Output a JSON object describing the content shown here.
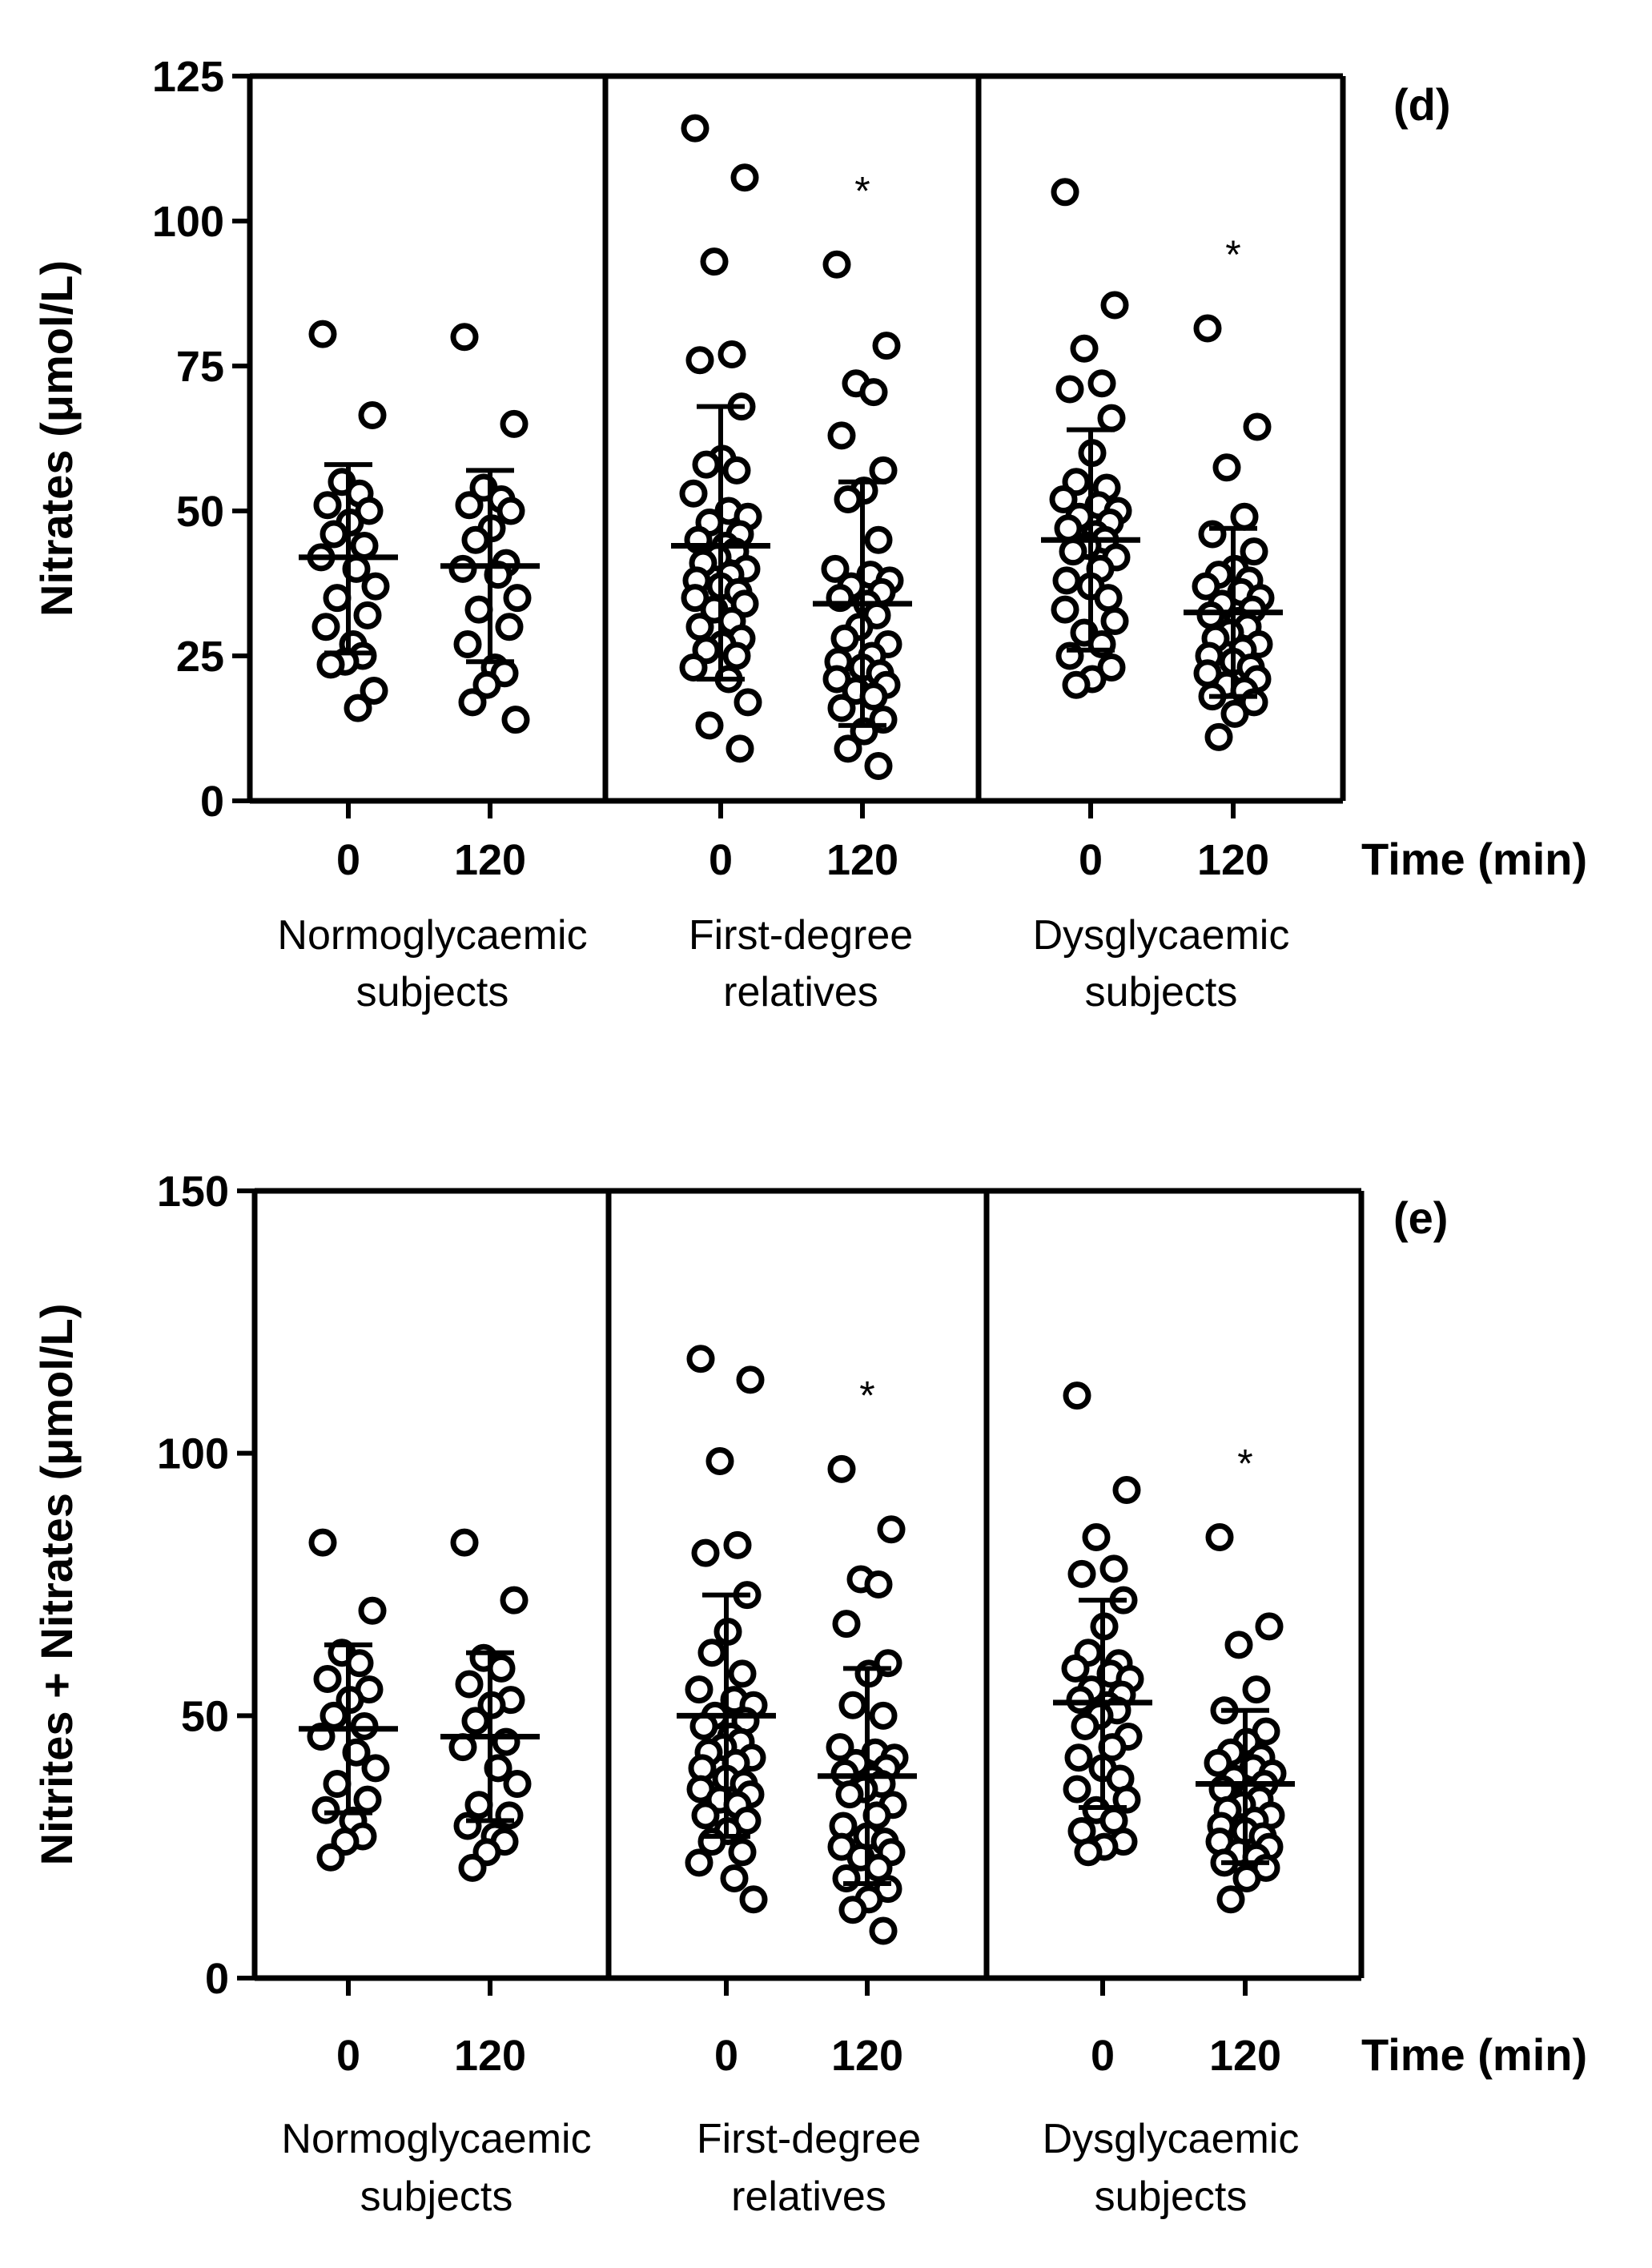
{
  "chart_data": [
    {
      "type": "scatter",
      "panel": "(d)",
      "ylabel": "Nitrates (μmol/L)",
      "xlabel": "Time (min)",
      "ylim": [
        0,
        125
      ],
      "yticks": [
        0,
        25,
        50,
        75,
        100,
        125
      ],
      "groups": [
        {
          "label_line1": "Normoglycaemic",
          "label_line2": "subjects",
          "columns": [
            {
              "time": "0",
              "mean": 42,
              "sd_low": 25.5,
              "sd_high": 58,
              "significant": false,
              "values": [
                80.5,
                66.5,
                55,
                53,
                51,
                50,
                48,
                46,
                44,
                42,
                40,
                37,
                35,
                32,
                30,
                27,
                25,
                24,
                23.5,
                19,
                16
              ]
            },
            {
              "time": "120",
              "mean": 40.5,
              "sd_low": 24,
              "sd_high": 57,
              "significant": false,
              "values": [
                80,
                65,
                54,
                52,
                51,
                50,
                47,
                45,
                41,
                40,
                39,
                35,
                33,
                30,
                27,
                23,
                22,
                20,
                17,
                14
              ]
            }
          ]
        },
        {
          "label_line1": "First-degree",
          "label_line2": "relatives",
          "columns": [
            {
              "time": "0",
              "mean": 44,
              "sd_low": 21,
              "sd_high": 68,
              "significant": false,
              "values": [
                116,
                107.5,
                93,
                77,
                76,
                68,
                59,
                58,
                57,
                53,
                50,
                49,
                48,
                46,
                45,
                44,
                43,
                42,
                41,
                40,
                39,
                38,
                37,
                36,
                35,
                34,
                33,
                31,
                30,
                28,
                27,
                26,
                25,
                23,
                21,
                17,
                13,
                9
              ]
            },
            {
              "time": "120",
              "mean": 34,
              "sd_low": 13,
              "sd_high": 55,
              "significant": true,
              "values": [
                92.5,
                78.5,
                72,
                70.5,
                63,
                57,
                53.5,
                52,
                45,
                40,
                39,
                38,
                37,
                36,
                35,
                34,
                32,
                30,
                28,
                27,
                25,
                24,
                23,
                22,
                21,
                20,
                19,
                18,
                16,
                14,
                12,
                9,
                6
              ]
            }
          ]
        },
        {
          "label_line1": "Dysglycaemic",
          "label_line2": "subjects",
          "columns": [
            {
              "time": "0",
              "mean": 45,
              "sd_low": 26,
              "sd_high": 64,
              "significant": false,
              "values": [
                105,
                85.5,
                78,
                72,
                71,
                66,
                60,
                55,
                54,
                52,
                51,
                50,
                49,
                48,
                47,
                46,
                45,
                44,
                43,
                42,
                40,
                38,
                37,
                35,
                33,
                31,
                29,
                27,
                25,
                23,
                21,
                20
              ]
            },
            {
              "time": "120",
              "mean": 32.5,
              "sd_low": 18,
              "sd_high": 47,
              "significant": true,
              "values": [
                81.5,
                64.5,
                57.5,
                49,
                46,
                43,
                40,
                39,
                38,
                37,
                36,
                35,
                34,
                33,
                32,
                31,
                30,
                29,
                28,
                27,
                26,
                25,
                24,
                23,
                22,
                21,
                20,
                19,
                18,
                17,
                15,
                11
              ]
            }
          ]
        }
      ]
    },
    {
      "type": "scatter",
      "panel": "(e)",
      "ylabel": "Nitrites + Nitrates (μmol/L)",
      "xlabel": "Time (min)",
      "ylim": [
        0,
        150
      ],
      "yticks": [
        0,
        50,
        100,
        150
      ],
      "groups": [
        {
          "label_line1": "Normoglycaemic",
          "label_line2": "subjects",
          "columns": [
            {
              "time": "0",
              "mean": 47.5,
              "sd_low": 31.5,
              "sd_high": 63.5,
              "significant": false,
              "values": [
                83,
                70,
                62,
                60,
                57,
                55,
                53,
                50,
                48,
                46,
                43,
                40,
                37,
                34,
                32,
                30,
                27,
                26,
                23
              ]
            },
            {
              "time": "120",
              "mean": 46,
              "sd_low": 30,
              "sd_high": 62,
              "significant": false,
              "values": [
                83,
                72,
                61,
                59,
                56,
                53,
                52,
                49,
                45,
                44,
                40,
                37,
                33,
                31,
                29,
                27,
                26,
                24,
                21
              ]
            }
          ]
        },
        {
          "label_line1": "First-degree",
          "label_line2": "relatives",
          "columns": [
            {
              "time": "0",
              "mean": 50,
              "sd_low": 27,
              "sd_high": 73,
              "significant": false,
              "values": [
                118,
                114,
                98.5,
                82.5,
                81,
                73,
                66,
                62,
                58,
                55,
                53,
                52,
                50,
                49,
                48,
                46,
                45,
                44,
                43,
                42,
                41,
                40,
                38,
                37,
                36,
                35,
                34,
                33,
                31,
                30,
                28,
                26,
                24,
                22,
                19,
                15
              ]
            },
            {
              "time": "120",
              "mean": 38.5,
              "sd_low": 18,
              "sd_high": 59,
              "significant": true,
              "values": [
                97,
                85.5,
                76,
                75,
                67.5,
                60,
                58,
                52,
                50,
                44,
                43,
                42,
                41,
                40,
                39,
                38,
                37,
                36,
                35,
                33,
                31,
                29,
                27,
                26,
                25,
                24,
                23,
                21,
                19,
                17,
                15,
                13,
                9
              ]
            }
          ]
        },
        {
          "label_line1": "Dysglycaemic",
          "label_line2": "subjects",
          "columns": [
            {
              "time": "0",
              "mean": 52.5,
              "sd_low": 32.5,
              "sd_high": 72,
              "significant": false,
              "values": [
                111,
                93,
                84,
                78,
                77,
                72,
                67,
                62,
                60,
                59,
                58,
                57,
                55,
                54,
                53,
                52,
                51,
                50,
                48,
                46,
                44,
                42,
                40,
                38,
                36,
                34,
                32,
                30,
                28,
                26,
                25,
                24
              ]
            },
            {
              "time": "120",
              "mean": 37,
              "sd_low": 22,
              "sd_high": 51,
              "significant": true,
              "values": [
                84,
                67,
                63.5,
                55,
                51,
                47,
                45,
                43,
                42,
                41,
                40,
                39,
                38,
                37,
                36,
                35,
                34,
                33,
                32,
                31,
                30,
                29,
                28,
                27,
                26,
                25,
                24,
                23,
                22,
                21,
                19,
                15
              ]
            }
          ]
        }
      ]
    }
  ],
  "significance_marker": "*"
}
